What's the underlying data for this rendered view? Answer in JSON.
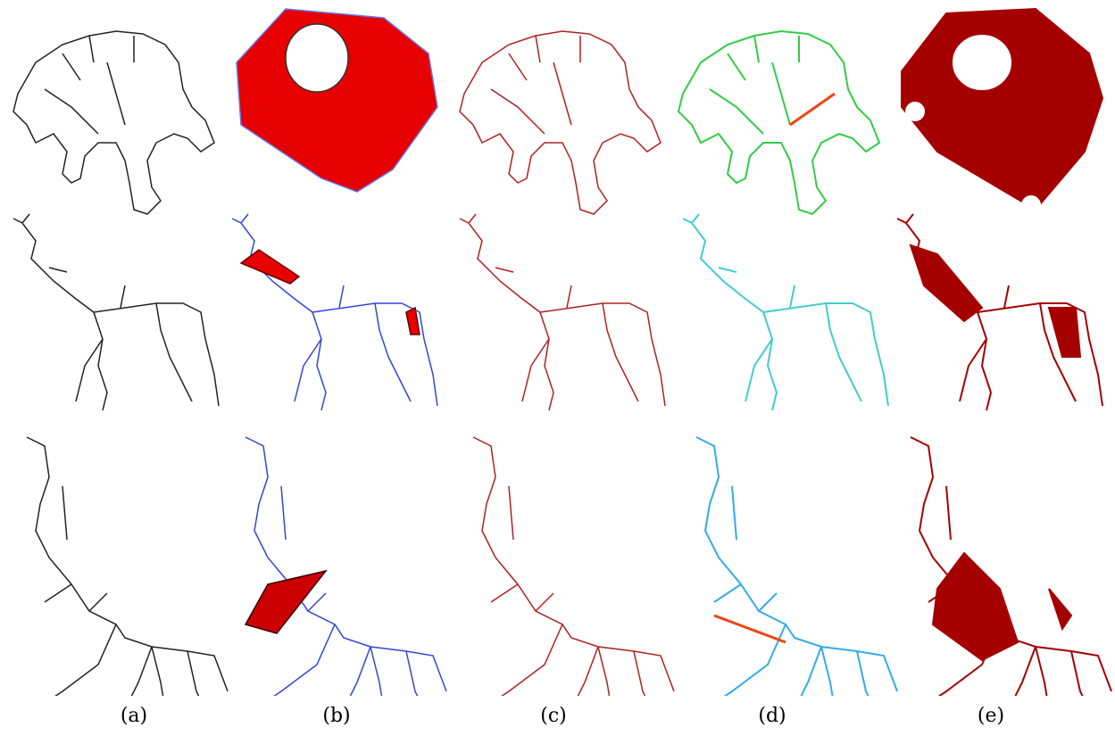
{
  "figure": {
    "panel_labels": [
      "(a)",
      "(b)",
      "(c)",
      "(d)",
      "(e)"
    ]
  }
}
